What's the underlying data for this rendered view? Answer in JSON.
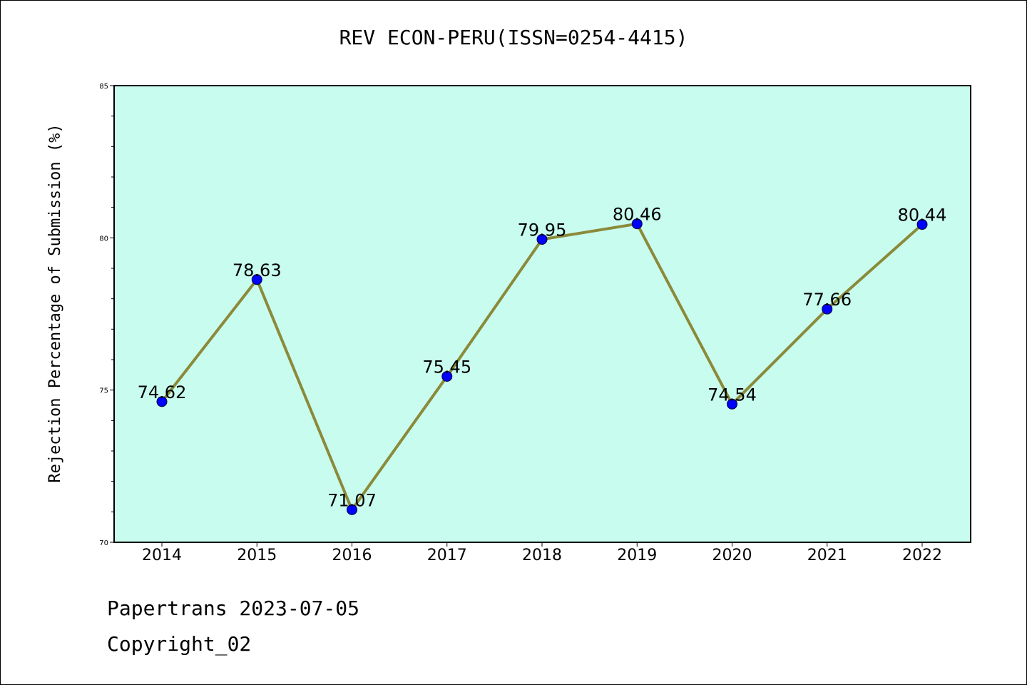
{
  "chart_data": {
    "type": "line",
    "title": "REV ECON-PERU(ISSN=0254-4415)",
    "ylabel": "Rejection Percentage of Submission (%)",
    "xlabel": "",
    "categories": [
      "2014",
      "2015",
      "2016",
      "2017",
      "2018",
      "2019",
      "2020",
      "2021",
      "2022"
    ],
    "values": [
      74.62,
      78.63,
      71.07,
      75.45,
      79.95,
      80.46,
      74.54,
      77.66,
      80.44
    ],
    "data_labels": [
      "74.62",
      "78.63",
      "71.07",
      "75.45",
      "79.95",
      "80.46",
      "74.54",
      "77.66",
      "80.44"
    ],
    "ylim": [
      70,
      85
    ],
    "yticks": [
      70,
      75,
      80,
      85
    ],
    "grid": false,
    "colors": {
      "plot_background": "#c8fcee",
      "line": "#8b8a3a",
      "marker": "#0000ff"
    }
  },
  "footer": {
    "line1": "Papertrans 2023-07-05",
    "line2": "Copyright_02"
  }
}
